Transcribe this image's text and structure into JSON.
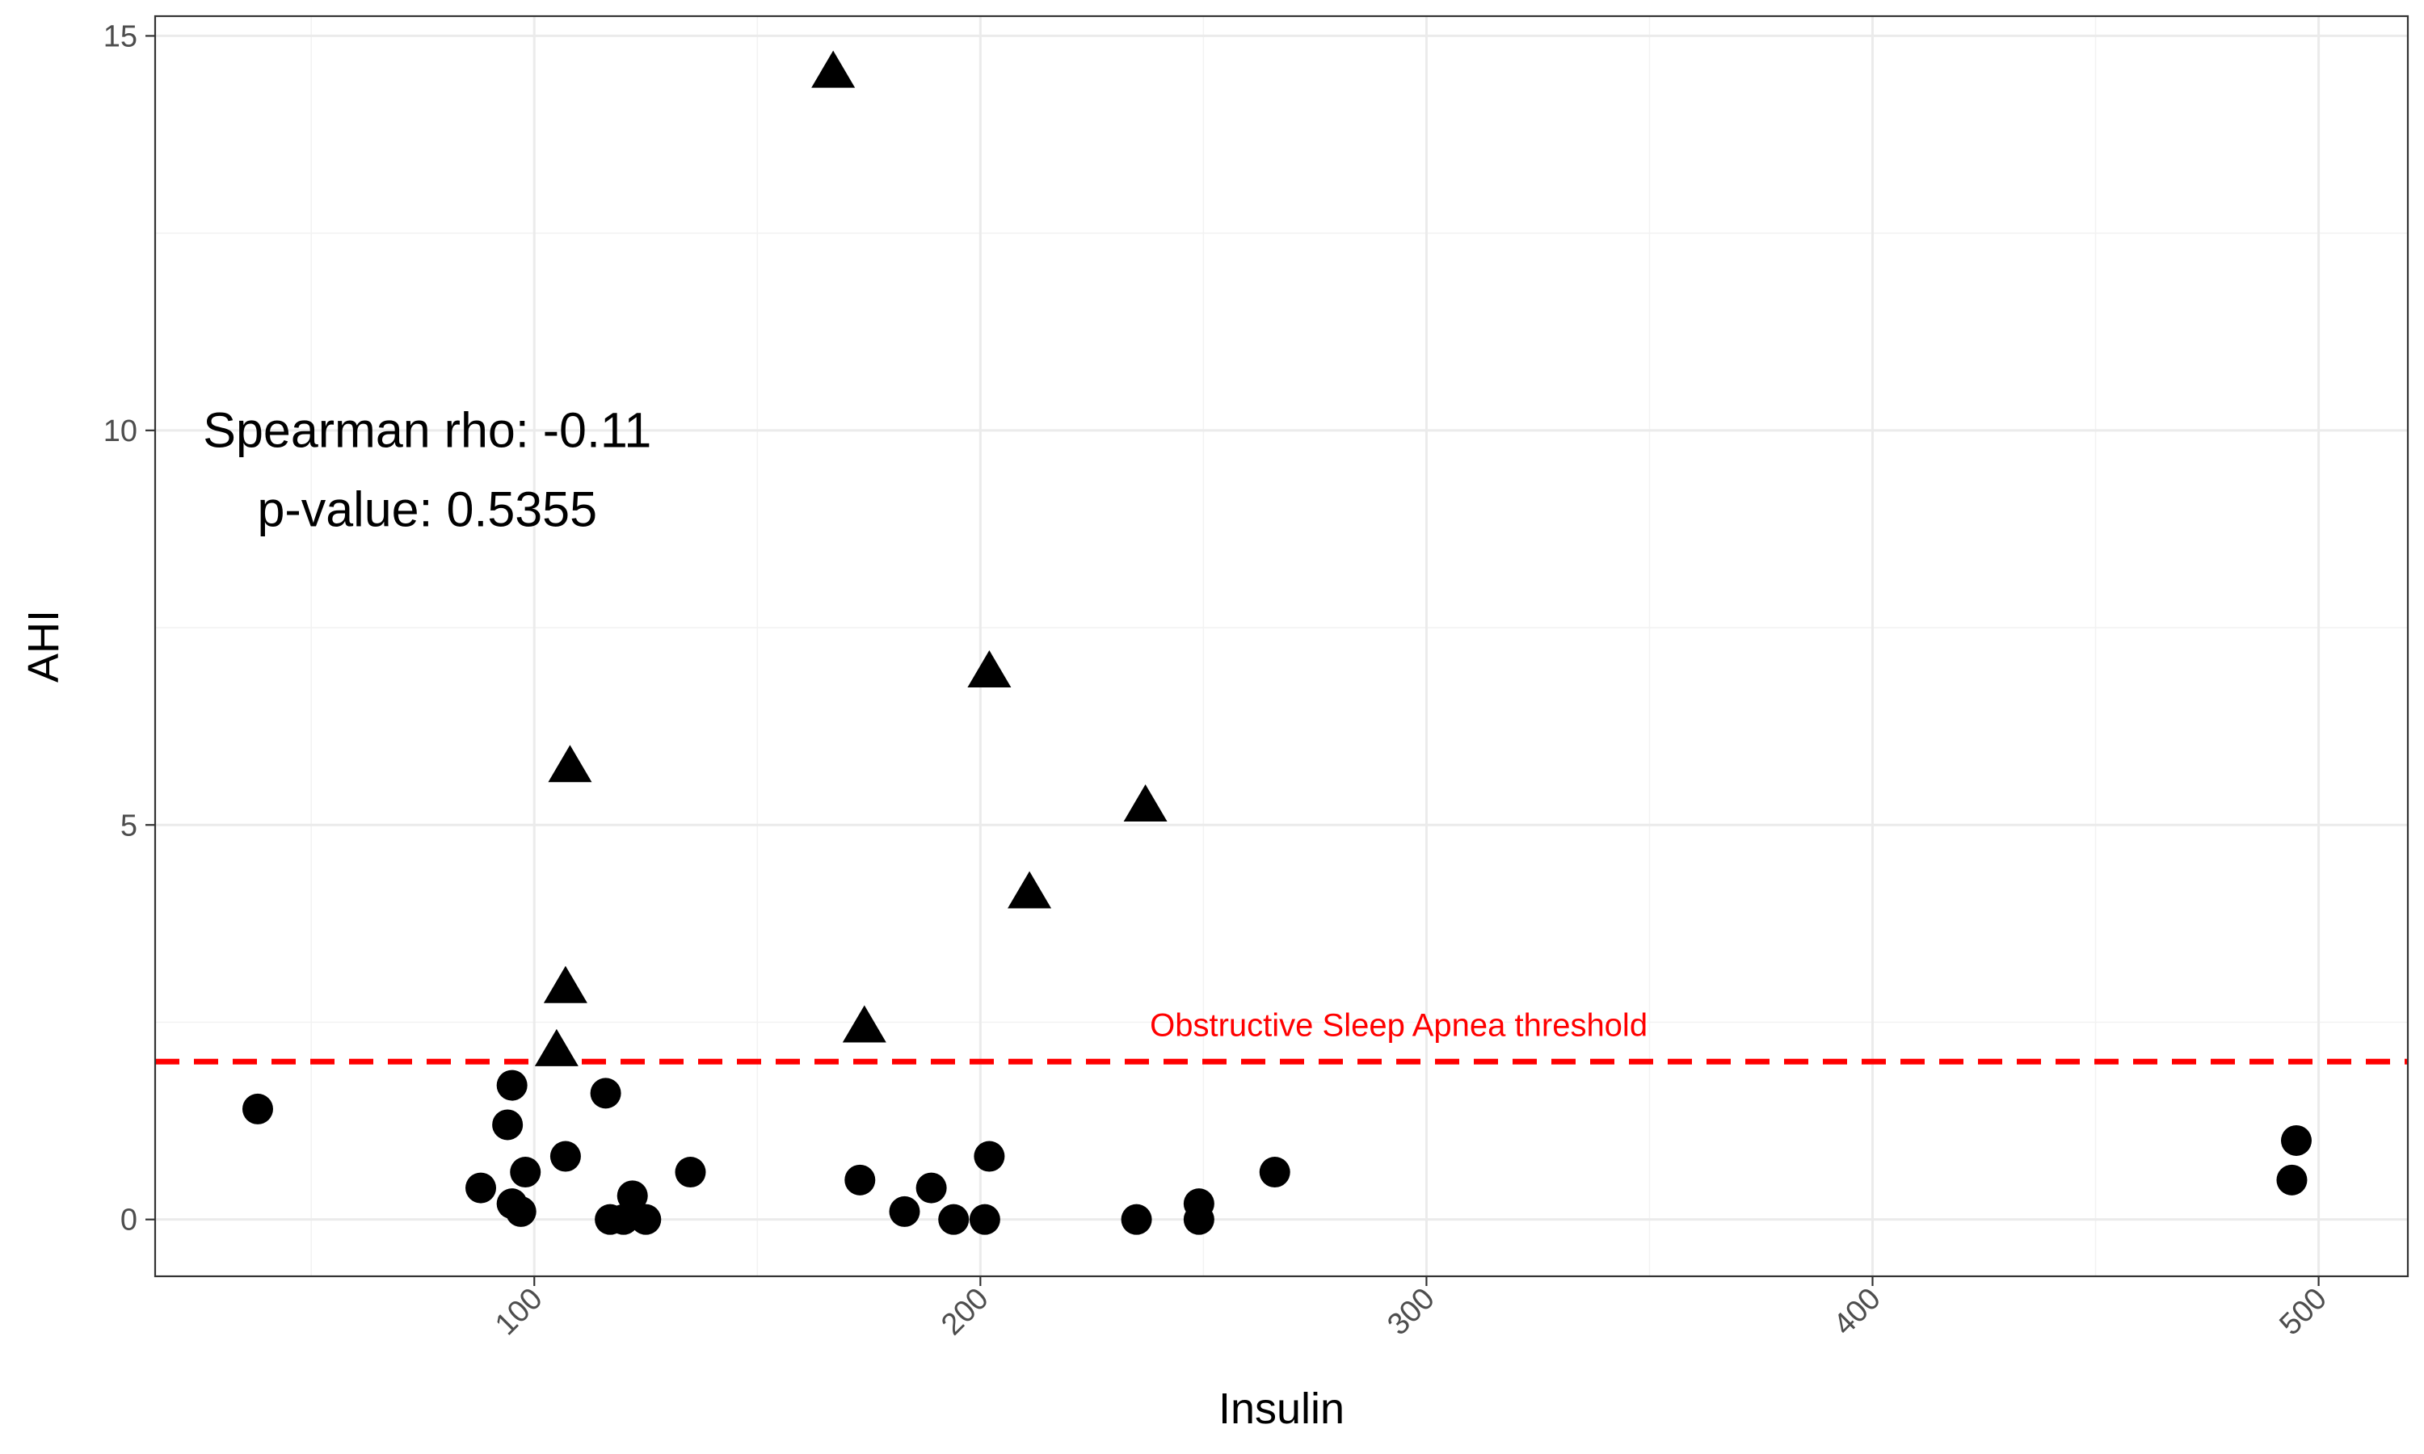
{
  "chart_data": {
    "type": "scatter",
    "title": "",
    "xlabel": "Insulin",
    "ylabel": "AHI",
    "xlim": [
      15,
      520
    ],
    "ylim": [
      -0.72,
      15.25
    ],
    "x_ticks": [
      100,
      200,
      300,
      400,
      500
    ],
    "x_tick_labels": [
      "100",
      "200",
      "300",
      "400",
      "500"
    ],
    "x_tick_label_rotation": 45,
    "y_ticks": [
      0,
      5,
      10,
      15
    ],
    "y_tick_labels": [
      "0",
      "5",
      "10",
      "15"
    ],
    "grid": true,
    "legend": "none",
    "series": [
      {
        "shape": "circle",
        "color": "#000000",
        "points": [
          [
            38,
            1.4
          ],
          [
            88,
            0.4
          ],
          [
            94,
            1.2
          ],
          [
            95,
            0.2
          ],
          [
            95,
            1.7
          ],
          [
            97,
            0.1
          ],
          [
            98,
            0.6
          ],
          [
            107,
            0.8
          ],
          [
            116,
            1.6
          ],
          [
            117,
            0.0
          ],
          [
            120,
            0.0
          ],
          [
            122,
            0.3
          ],
          [
            125,
            0.0
          ],
          [
            135,
            0.6
          ],
          [
            173,
            0.5
          ],
          [
            183,
            0.1
          ],
          [
            189,
            0.4
          ],
          [
            194,
            0.0
          ],
          [
            201,
            0.0
          ],
          [
            202,
            0.8
          ],
          [
            235,
            0.0
          ],
          [
            249,
            0.2
          ],
          [
            249,
            0.0
          ],
          [
            266,
            0.6
          ],
          [
            494,
            0.5
          ],
          [
            495,
            1.0
          ]
        ]
      },
      {
        "shape": "triangle",
        "color": "#000000",
        "points": [
          [
            105,
            2.1
          ],
          [
            107,
            2.9
          ],
          [
            108,
            5.7
          ],
          [
            167,
            14.5
          ],
          [
            174,
            2.4
          ],
          [
            202,
            6.9
          ],
          [
            211,
            4.1
          ],
          [
            237,
            5.2
          ]
        ]
      }
    ],
    "reference_lines": [
      {
        "axis": "y",
        "value": 2,
        "style": "dashed",
        "color": "#ff0000",
        "label": "Obstructive Sleep Apnea threshold"
      }
    ],
    "annotations": [
      {
        "lines": [
          "Spearman rho: -0.11",
          "p-value: 0.5355"
        ],
        "x": 76,
        "y": 9.5
      }
    ]
  }
}
